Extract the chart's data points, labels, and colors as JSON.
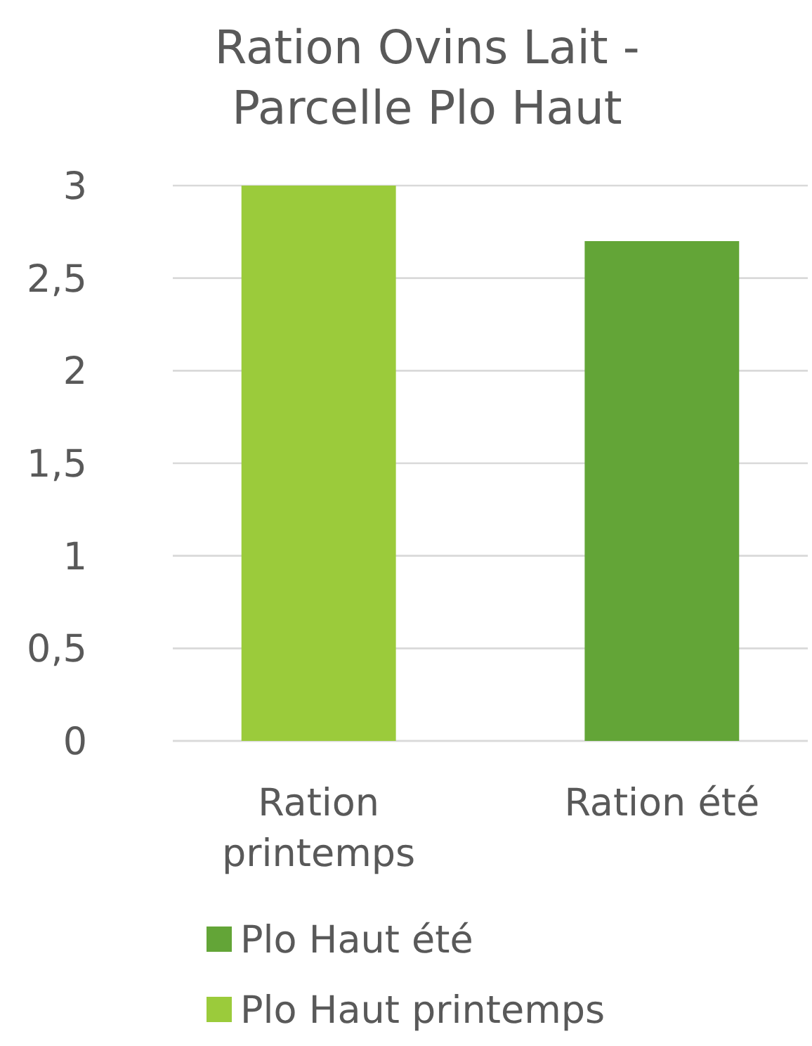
{
  "chart_data": {
    "type": "bar",
    "title": "Ration Ovins Lait - Parcelle Plo Haut",
    "categories": [
      "Ration printemps",
      "Ration été"
    ],
    "stacked": true,
    "series": [
      {
        "name": "Plo Haut été",
        "color": "#63a537",
        "values": [
          null,
          2.7
        ]
      },
      {
        "name": "Plo Haut printemps",
        "color": "#9bcb3b",
        "values": [
          3,
          null
        ]
      }
    ],
    "ylim": [
      0,
      3
    ],
    "yticks": [
      0,
      {
        "value": 0.5,
        "label": "0,5"
      },
      1,
      {
        "value": 1.5,
        "label": "1,5"
      },
      2,
      {
        "value": 2.5,
        "label": "2,5"
      },
      3
    ],
    "grid": "y",
    "legend": "bottom"
  }
}
